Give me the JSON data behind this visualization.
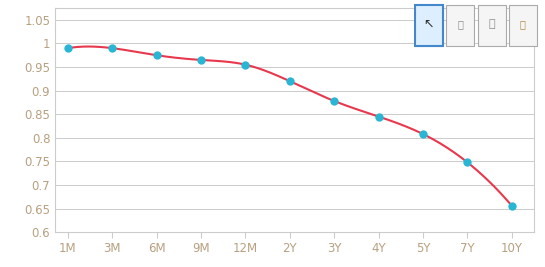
{
  "x_labels": [
    "1M",
    "3M",
    "6M",
    "9M",
    "12M",
    "2Y",
    "3Y",
    "4Y",
    "5Y",
    "7Y",
    "10Y"
  ],
  "x_positions": [
    0,
    1,
    2,
    3,
    4,
    5,
    6,
    7,
    8,
    9,
    10
  ],
  "y_values": [
    0.99,
    0.99,
    0.975,
    0.965,
    0.955,
    0.92,
    0.878,
    0.845,
    0.808,
    0.748,
    0.656
  ],
  "line_color": "#e8384e",
  "marker_color": "#29b6d5",
  "marker_size": 6,
  "line_width": 1.5,
  "ylim": [
    0.6,
    1.075
  ],
  "xlim": [
    -0.3,
    10.5
  ],
  "yticks": [
    0.6,
    0.65,
    0.7,
    0.75,
    0.8,
    0.85,
    0.9,
    0.95,
    1.0,
    1.05
  ],
  "background_color": "#ffffff",
  "grid_color": "#cccccc",
  "tick_label_color": "#b8a080",
  "tick_label_fontsize": 8.5,
  "spine_color": "#cccccc",
  "border_color": "#cccccc"
}
